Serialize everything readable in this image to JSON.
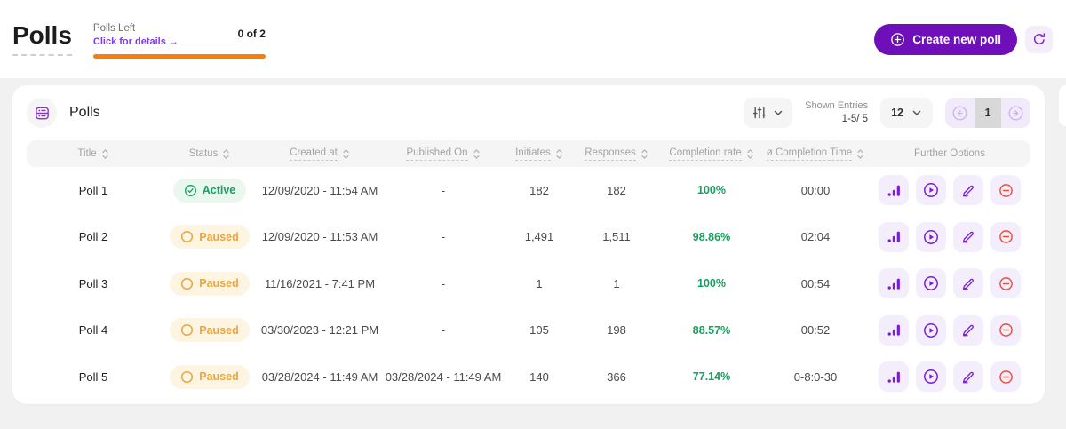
{
  "header": {
    "title": "Polls",
    "polls_left": {
      "label": "Polls Left",
      "link": "Click for details →",
      "count": "0 of 2"
    },
    "create_button": "Create new poll",
    "accent_color": "#6e0fb9",
    "progress_color": "#f97d0a"
  },
  "card": {
    "title": "Polls",
    "controls": {
      "filter_icon": "sliders-icon",
      "shown_entries_label": "Shown Entries",
      "shown_entries_value": "1-5/ 5",
      "page_size": "12",
      "current_page": "1"
    },
    "table": {
      "columns": [
        {
          "label": "Title",
          "sortable": true,
          "underline": false
        },
        {
          "label": "Status",
          "sortable": true,
          "underline": false
        },
        {
          "label": "Created at",
          "sortable": true,
          "underline": true
        },
        {
          "label": "Published On",
          "sortable": true,
          "underline": true
        },
        {
          "label": "Initiates",
          "sortable": true,
          "underline": true
        },
        {
          "label": "Responses",
          "sortable": true,
          "underline": true
        },
        {
          "label": "Completion rate",
          "sortable": true,
          "underline": true
        },
        {
          "label": "ø Completion Time",
          "sortable": true,
          "underline": true
        },
        {
          "label": "Further Options",
          "sortable": false,
          "underline": false
        }
      ],
      "rows": [
        {
          "title": "Poll 1",
          "status": "Active",
          "status_type": "active",
          "created_at": "12/09/2020 - 11:54 AM",
          "published_on": "-",
          "initiates": "182",
          "responses": "182",
          "completion_rate": "100%",
          "completion_time": "00:00"
        },
        {
          "title": "Poll 2",
          "status": "Paused",
          "status_type": "paused",
          "created_at": "12/09/2020 - 11:53 AM",
          "published_on": "-",
          "initiates": "1,491",
          "responses": "1,511",
          "completion_rate": "98.86%",
          "completion_time": "02:04"
        },
        {
          "title": "Poll 3",
          "status": "Paused",
          "status_type": "paused",
          "created_at": "11/16/2021 - 7:41 PM",
          "published_on": "-",
          "initiates": "1",
          "responses": "1",
          "completion_rate": "100%",
          "completion_time": "00:54"
        },
        {
          "title": "Poll 4",
          "status": "Paused",
          "status_type": "paused",
          "created_at": "03/30/2023 - 12:21 PM",
          "published_on": "-",
          "initiates": "105",
          "responses": "198",
          "completion_rate": "88.57%",
          "completion_time": "00:52"
        },
        {
          "title": "Poll 5",
          "status": "Paused",
          "status_type": "paused",
          "created_at": "03/28/2024 - 11:49 AM",
          "published_on": "03/28/2024 - 11:49 AM",
          "initiates": "140",
          "responses": "366",
          "completion_rate": "77.14%",
          "completion_time": "0-8:0-30"
        }
      ],
      "row_actions": [
        {
          "name": "statistics",
          "icon": "bar-chart-icon"
        },
        {
          "name": "play",
          "icon": "play-circle-icon"
        },
        {
          "name": "edit",
          "icon": "pencil-icon"
        },
        {
          "name": "delete",
          "icon": "minus-circle-icon"
        }
      ]
    },
    "status_colors": {
      "active": "#17a05e",
      "paused": "#eaa63e"
    },
    "rate_color": "#17a05e",
    "danger_color": "#e94f3d"
  }
}
